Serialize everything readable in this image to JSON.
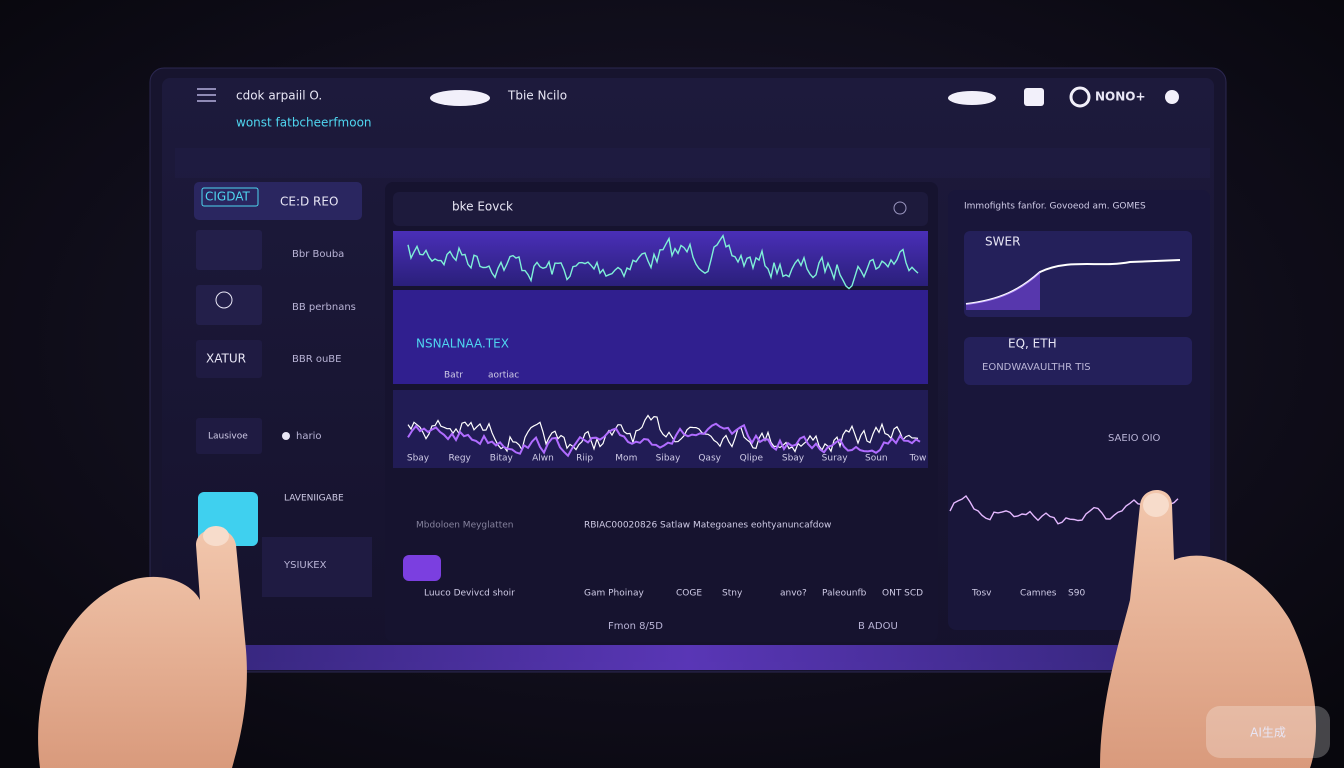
{
  "header": {
    "app_name": "cdok arpaiil O.",
    "subtitle": "wonst fatbcheerfmoon",
    "center_title": "Tbie Ncilo",
    "right_label": "NONO+"
  },
  "sidebar": {
    "items": [
      {
        "code": "CIGDAT",
        "label": "CE:D REO"
      },
      {
        "label": "Bbr Bouba"
      },
      {
        "label": "BB perbnans"
      },
      {
        "code": "XATUR",
        "label": "BBR ouBE"
      },
      {
        "code": "Lausivoe",
        "label": "hario"
      },
      {
        "label": "LAVENIIGABE"
      },
      {
        "label": "YSIUKEX"
      }
    ]
  },
  "main_panel": {
    "title": "bke Eovck",
    "chart_caption": "NSNALNAA.TEX",
    "chart_tag": "Batr",
    "chart_sub": "aortiac",
    "x_labels": [
      "Sbay",
      "Regy",
      "Bitay",
      "Alwn",
      "Riip",
      "Mom",
      "Sibay",
      "Qasy",
      "Qlipe",
      "Sbay",
      "Suray",
      "Soun",
      "Tow"
    ],
    "lower_left": "Mbdoloen Meyglatten",
    "lower_caption": "RBIAC00020826 Satlaw Mategoanes eohtyanuncafdow",
    "bottom_labels": [
      "Luuco Devivcd shoir",
      "Gam Phoinay",
      "COGE",
      "Stny",
      "anvo?",
      "Paleounfb",
      "ONT SCD"
    ],
    "footer_left": "Fmon 8/5D",
    "footer_right": "B ADOU"
  },
  "right_panel": {
    "title": "Immofights fanfor. Govoeod am. GOMES",
    "card1_title": "SWER",
    "card2_title": "EQ, ETH",
    "card2_sub": "EONDWAVAULTHR TIS",
    "card2_value": "SAEIO OIO",
    "x_labels": [
      "Tosv",
      "Camnes",
      "S90"
    ]
  },
  "watermark": "AI生成"
}
